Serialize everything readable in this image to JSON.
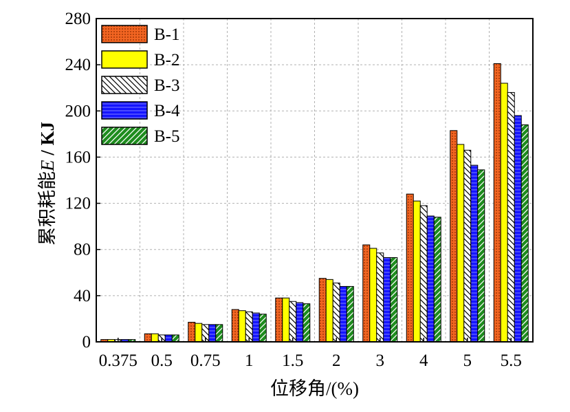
{
  "chart_data": {
    "type": "bar",
    "categories": [
      "0.375",
      "0.5",
      "0.75",
      "1",
      "1.5",
      "2",
      "3",
      "4",
      "5",
      "5.5"
    ],
    "series": [
      {
        "name": "B-1",
        "color": "#f26522",
        "pattern": "dots",
        "values": [
          2,
          7,
          17,
          28,
          38,
          55,
          84,
          128,
          183,
          241
        ]
      },
      {
        "name": "B-2",
        "color": "#ffff00",
        "pattern": "solid",
        "values": [
          2,
          7,
          16,
          27,
          38,
          54,
          81,
          122,
          171,
          224
        ]
      },
      {
        "name": "B-3",
        "color": "#ffffff",
        "pattern": "hatch-back",
        "values": [
          2,
          6,
          15,
          26,
          35,
          51,
          77,
          118,
          166,
          216
        ]
      },
      {
        "name": "B-4",
        "color": "#1414ff",
        "pattern": "hlines",
        "values": [
          2,
          6,
          15,
          25,
          34,
          48,
          73,
          109,
          153,
          196
        ]
      },
      {
        "name": "B-5",
        "color": "#1e8c1e",
        "pattern": "hatch-fwd",
        "values": [
          2,
          6,
          15,
          24,
          33,
          48,
          73,
          108,
          149,
          188
        ]
      }
    ],
    "xlabel": "位移角/(%)",
    "ylabel_prefix": "累积耗能",
    "ylabel_var": "E",
    "ylabel_unit": " / KJ",
    "ylim": [
      0,
      280
    ],
    "yticks": [
      "0",
      "40",
      "80",
      "120",
      "160",
      "200",
      "240",
      "280"
    ],
    "grid": true,
    "legend_position": "top-left"
  }
}
